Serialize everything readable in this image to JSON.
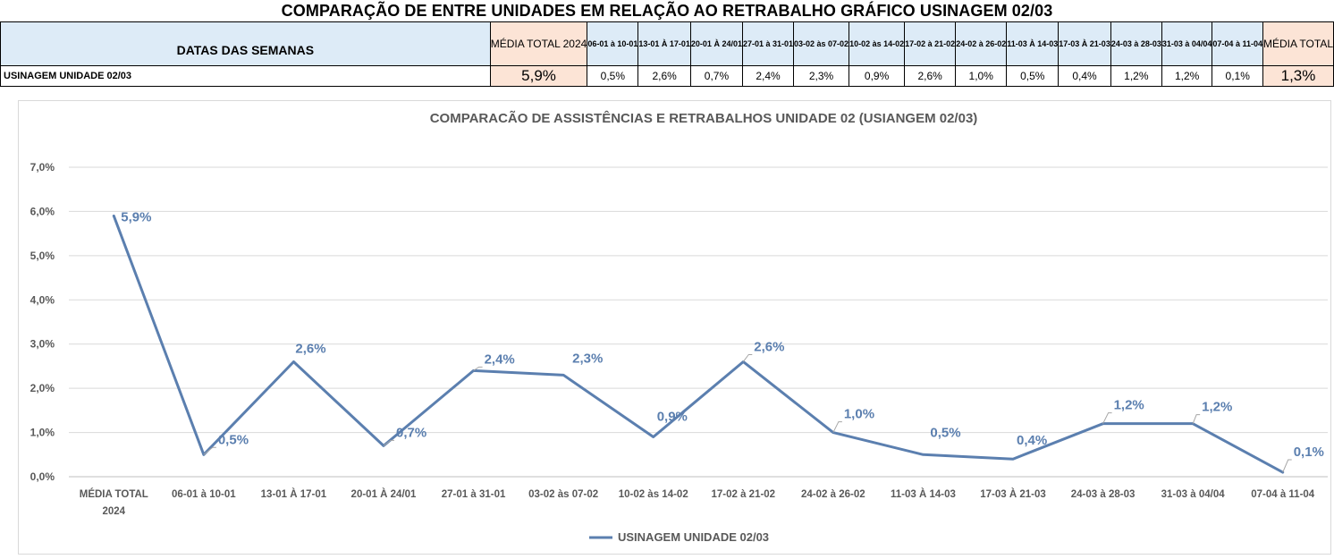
{
  "sheet": {
    "title": "COMPARAÇÃO DE ENTRE UNIDADES EM RELAÇÃO AO RETRABALHO GRÁFICO USINAGEM 02/03",
    "header_label": "DATAS DAS SEMANAS",
    "row_name": "USINAGEM UNIDADE 02/03",
    "avg_2024_header": "MÉDIA TOTAL 2024",
    "avg_total_header": "MÉDIA TOTAL",
    "week_headers": [
      "06-01 à 10-01",
      "13-01 À 17-01",
      "20-01 À 24/01",
      "27-01 à 31-01",
      "03-02 às 07-02",
      "10-02 às 14-02",
      "17-02 à 21-02",
      "24-02 à 26-02",
      "11-03 À 14-03",
      "17-03 À 21-03",
      "24-03 à 28-03",
      "31-03 à 04/04",
      "07-04 à 11-04"
    ],
    "avg_2024_value": "5,9%",
    "week_values": [
      "0,5%",
      "2,6%",
      "0,7%",
      "2,4%",
      "2,3%",
      "0,9%",
      "2,6%",
      "1,0%",
      "0,5%",
      "0,4%",
      "1,2%",
      "1,2%",
      "0,1%"
    ],
    "avg_total_value": "1,3%"
  },
  "chart_data": {
    "type": "line",
    "title": "COMPARACÃO DE ASSISTÊNCIAS E RETRABALHOS UNIDADE 02  (USIANGEM 02/03)",
    "categories": [
      "MÉDIA TOTAL 2024",
      "06-01 à 10-01",
      "13-01 À 17-01",
      "20-01 À 24/01",
      "27-01 à 31-01",
      "03-02 às 07-02",
      "10-02 às 14-02",
      "17-02 à 21-02",
      "24-02 à 26-02",
      "11-03 À 14-03",
      "17-03 À 21-03",
      "24-03 à 28-03",
      "31-03 à 04/04",
      "07-04 à 11-04"
    ],
    "series": [
      {
        "name": "USINAGEM UNIDADE 02/03",
        "values": [
          5.9,
          0.5,
          2.6,
          0.7,
          2.4,
          2.3,
          0.9,
          2.6,
          1.0,
          0.5,
          0.4,
          1.2,
          1.2,
          0.1
        ],
        "labels": [
          "5,9%",
          "0,5%",
          "2,6%",
          "0,7%",
          "2,4%",
          "2,3%",
          "0,9%",
          "2,6%",
          "1,0%",
          "0,5%",
          "0,4%",
          "1,2%",
          "1,2%",
          "0,1%"
        ],
        "color": "#5b7faf"
      }
    ],
    "y_ticks": [
      "0,0%",
      "1,0%",
      "2,0%",
      "3,0%",
      "4,0%",
      "5,0%",
      "6,0%",
      "7,0%"
    ],
    "ylim": [
      0,
      7
    ],
    "grid": true,
    "legend": "bottom",
    "label_color": "#5b7faf",
    "axis_text_color": "#595959"
  }
}
